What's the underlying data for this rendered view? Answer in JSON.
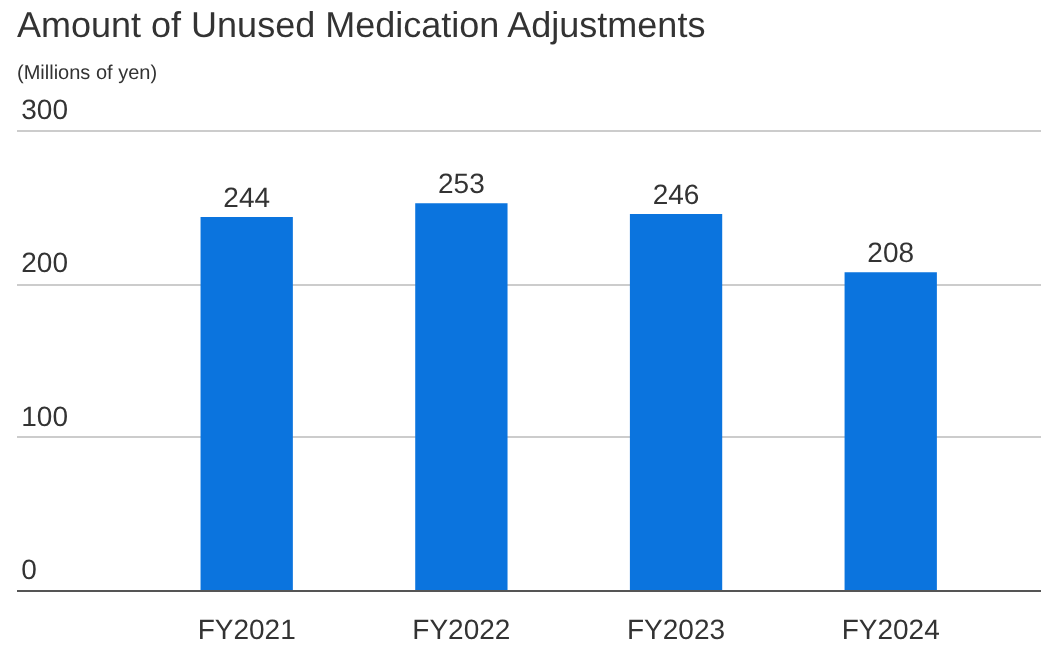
{
  "chart_data": {
    "type": "bar",
    "title": "Amount of Unused Medication Adjustments",
    "subtitle": "(Millions of yen)",
    "categories": [
      "FY2021",
      "FY2022",
      "FY2023",
      "FY2024"
    ],
    "values": [
      244,
      253,
      246,
      208
    ],
    "color": "#0b74de",
    "ylim": [
      0,
      300
    ],
    "yticks": [
      0,
      100,
      200,
      300
    ],
    "grid": "y",
    "data_labels": true
  }
}
